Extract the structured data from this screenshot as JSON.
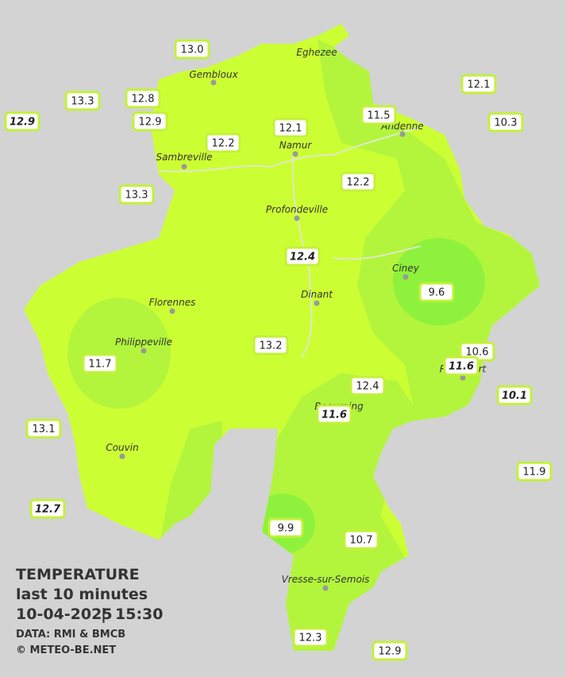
{
  "legend": {
    "title": "TEMPERATURE",
    "subtitle": "last 10 minutes",
    "date": "10-04-2025",
    "separator": "|",
    "time": "15:30",
    "source": "DATA: RMI & BMCB",
    "copyright": "© METEO-BE.NET"
  },
  "cities": [
    "Eghezee",
    "Gembloux",
    "Andenne",
    "Namur",
    "Sambreville",
    "Profondeville",
    "Ciney",
    "Dinant",
    "Florennes",
    "Philippeville",
    "Beauraing",
    "Rochefort",
    "Couvin",
    "Vresse-sur-Semois"
  ],
  "stations": [
    "13.0",
    "13.3",
    "12.8",
    "12.9",
    "12.9",
    "12.1",
    "11.5",
    "10.3",
    "12.1",
    "12.2",
    "12.2",
    "13.3",
    "12.4",
    "9.6",
    "13.2",
    "10.6",
    "11.6",
    "11.7",
    "12.4",
    "10.1",
    "11.6",
    "13.1",
    "11.9",
    "12.7",
    "9.9",
    "10.7",
    "12.3",
    "12.9"
  ]
}
